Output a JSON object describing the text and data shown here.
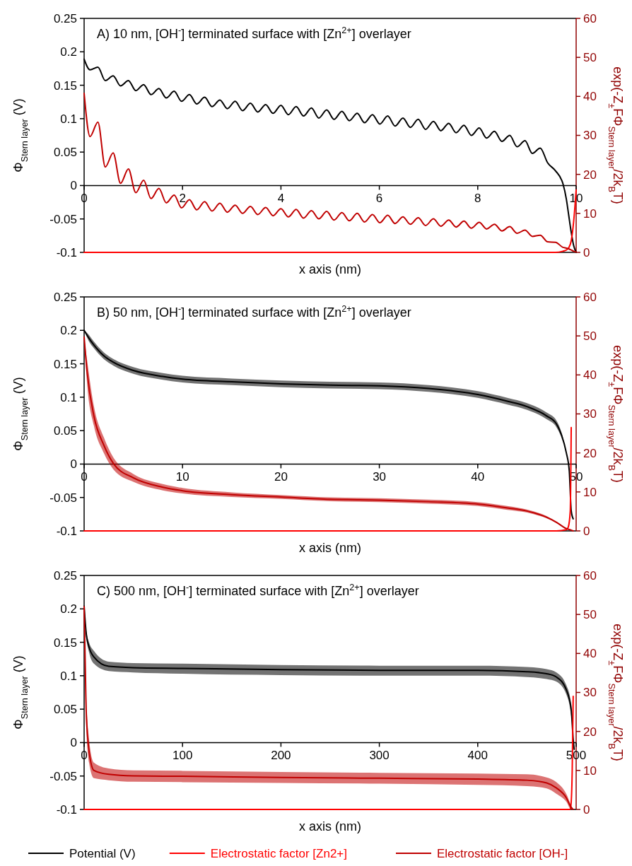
{
  "chart_data": [
    {
      "type": "line",
      "title": "A) 10 nm, [OH$^{-}$] terminated surface with [Zn$^{2+}$] overlayer",
      "xlabel": "x axis (nm)",
      "ylabel": "Φ$_{Stern layer}$ (V)",
      "y2label": "exp(-Z$_{±}$FΦ$_{Stern layer}$/2k$_{B}$T)",
      "xlim": [
        0,
        10
      ],
      "xticks": [
        0,
        2,
        4,
        6,
        8,
        10
      ],
      "ylim": [
        -0.1,
        0.25
      ],
      "yticks": [
        -0.1,
        -0.05,
        0,
        0.05,
        0.1,
        0.15,
        0.2,
        0.25
      ],
      "y2lim": [
        0,
        60
      ],
      "y2ticks": [
        0,
        10,
        20,
        30,
        40,
        50,
        60
      ],
      "legend": "bottom",
      "x": [
        0,
        0.12,
        0.28,
        0.43,
        0.59,
        0.74,
        0.9,
        1.05,
        1.21,
        1.36,
        1.52,
        1.67,
        1.83,
        1.98,
        2.14,
        2.29,
        2.45,
        2.6,
        2.76,
        2.91,
        3.07,
        3.22,
        3.38,
        3.53,
        3.69,
        3.84,
        4.0,
        4.15,
        4.31,
        4.46,
        4.62,
        4.77,
        4.93,
        5.08,
        5.24,
        5.39,
        5.55,
        5.7,
        5.86,
        6.01,
        6.17,
        6.32,
        6.48,
        6.63,
        6.79,
        6.94,
        7.1,
        7.25,
        7.41,
        7.56,
        7.72,
        7.87,
        8.03,
        8.18,
        8.34,
        8.49,
        8.65,
        8.8,
        8.96,
        9.11,
        9.27,
        9.42,
        9.58,
        9.73,
        9.8,
        9.85,
        9.9,
        9.95,
        10
      ],
      "series": [
        {
          "name": "Potential (V)",
          "color": "#000000",
          "values": [
            0.189,
            0.173,
            0.177,
            0.157,
            0.164,
            0.149,
            0.157,
            0.142,
            0.151,
            0.136,
            0.145,
            0.131,
            0.141,
            0.126,
            0.136,
            0.122,
            0.132,
            0.118,
            0.128,
            0.115,
            0.126,
            0.112,
            0.123,
            0.11,
            0.121,
            0.108,
            0.12,
            0.106,
            0.118,
            0.104,
            0.116,
            0.101,
            0.113,
            0.099,
            0.111,
            0.097,
            0.108,
            0.094,
            0.106,
            0.092,
            0.104,
            0.089,
            0.101,
            0.087,
            0.099,
            0.084,
            0.096,
            0.082,
            0.093,
            0.079,
            0.09,
            0.075,
            0.086,
            0.071,
            0.081,
            0.066,
            0.075,
            0.058,
            0.067,
            0.048,
            0.056,
            0.034,
            0.022,
            0.003,
            -0.02,
            -0.045,
            -0.07,
            -0.09,
            -0.1
          ]
        },
        {
          "name": "Electrostatic factor [Zn2+]",
          "color": "#ff0000",
          "axis": "y2",
          "x": [
            0,
            9.58,
            9.73,
            9.8,
            9.85,
            9.9,
            9.95,
            10
          ],
          "values": [
            0,
            0,
            0.3,
            0.6,
            1.2,
            3,
            8,
            16
          ]
        },
        {
          "name": "Electrostatic factor [OH-]",
          "color": "#c00000",
          "axis": "y2",
          "values": [
            40.8,
            29.7,
            33.4,
            21.9,
            25.5,
            17.7,
            21.4,
            15.3,
            18.5,
            13.8,
            16.4,
            12.7,
            14.7,
            11.4,
            13.5,
            10.9,
            13.0,
            10.6,
            12.6,
            10.3,
            12.1,
            10.0,
            11.8,
            9.7,
            11.5,
            9.4,
            11.2,
            9.1,
            11.0,
            8.8,
            10.7,
            8.6,
            10.5,
            8.3,
            10.2,
            8.1,
            10.0,
            7.8,
            9.7,
            7.6,
            9.5,
            7.4,
            9.1,
            7.2,
            8.9,
            6.9,
            8.6,
            6.7,
            8.3,
            6.5,
            8.0,
            6.2,
            7.7,
            6.0,
            7.2,
            5.5,
            6.6,
            4.9,
            5.7,
            4.1,
            4.4,
            2.7,
            2.6,
            1.3,
            1.1,
            0.9,
            0.6,
            0.3,
            0.1
          ]
        }
      ]
    },
    {
      "type": "line",
      "title": "B) 50 nm, [OH$^{-}$] terminated surface with [Zn$^{2+}$] overlayer",
      "xlabel": "x axis (nm)",
      "ylabel": "Φ$_{Stern layer}$ (V)",
      "y2label": "exp(-Z$_{±}$FΦ$_{Stern layer}$/2k$_{B}$T)",
      "xlim": [
        0,
        50
      ],
      "xticks": [
        0,
        10,
        20,
        30,
        40,
        50
      ],
      "ylim": [
        -0.1,
        0.25
      ],
      "yticks": [
        -0.1,
        -0.05,
        0,
        0.05,
        0.1,
        0.15,
        0.2,
        0.25
      ],
      "y2lim": [
        0,
        60
      ],
      "y2ticks": [
        0,
        10,
        20,
        30,
        40,
        50,
        60
      ],
      "series": [
        {
          "color": "#000000",
          "x": [
            0,
            0.5,
            1,
            2,
            3,
            5,
            8,
            10,
            15,
            20,
            25,
            30,
            35,
            40,
            43,
            45,
            47,
            48,
            48.5,
            49,
            49.3,
            49.5,
            49.7
          ],
          "values": [
            0.2,
            0.188,
            0.178,
            0.162,
            0.152,
            0.14,
            0.131,
            0.127,
            0.123,
            0.12,
            0.118,
            0.117,
            0.113,
            0.104,
            0.094,
            0.086,
            0.072,
            0.06,
            0.044,
            0.017,
            -0.01,
            -0.07,
            -0.082
          ],
          "lower": [
            0.2,
            0.183,
            0.173,
            0.157,
            0.147,
            0.135,
            0.126,
            0.122,
            0.118,
            0.115,
            0.113,
            0.112,
            0.108,
            0.099,
            0.089,
            0.081,
            0.067,
            0.055,
            0.04,
            0.017,
            -0.01,
            -0.07,
            -0.082
          ],
          "upper": [
            0.2,
            0.193,
            0.183,
            0.167,
            0.157,
            0.145,
            0.136,
            0.132,
            0.128,
            0.125,
            0.123,
            0.122,
            0.118,
            0.109,
            0.099,
            0.091,
            0.077,
            0.065,
            0.048,
            0.017,
            -0.01,
            -0.07,
            -0.082
          ]
        },
        {
          "color": "#ff0000",
          "axis": "y2",
          "x": [
            0,
            48,
            49,
            49.2,
            49.4,
            49.5
          ],
          "values": [
            0,
            0,
            0.3,
            1,
            5,
            26.5
          ]
        },
        {
          "color": "#c00000",
          "axis": "y2",
          "x": [
            0,
            0.3,
            1,
            2,
            3,
            5,
            8,
            10,
            15,
            20,
            25,
            30,
            35,
            40,
            43,
            45,
            47,
            48,
            49,
            49.5,
            49.7
          ],
          "values": [
            49.7,
            40.8,
            29.4,
            22,
            17.2,
            13.6,
            11.2,
            10.3,
            9.3,
            8.7,
            8.1,
            7.9,
            7.5,
            6.9,
            5.9,
            5.1,
            3.5,
            2.2,
            0.6,
            0.2,
            0
          ],
          "lower": [
            49.7,
            37.8,
            26.9,
            20,
            15.7,
            12.6,
            10.4,
            9.6,
            8.7,
            8.2,
            7.6,
            7.4,
            7,
            6.4,
            5.4,
            4.7,
            3.2,
            2,
            0.5,
            0.2,
            0
          ],
          "upper": [
            49.7,
            43.8,
            31.9,
            24,
            18.7,
            14.6,
            12,
            11,
            9.9,
            9.2,
            8.6,
            8.4,
            8,
            7.4,
            6.4,
            5.5,
            3.8,
            2.4,
            0.7,
            0.2,
            0
          ]
        }
      ]
    },
    {
      "type": "line",
      "title": "C) 500 nm, [OH$^{-}$] terminated surface with [Zn$^{2+}$] overlayer",
      "xlabel": "x axis (nm)",
      "ylabel": "Φ$_{Stern layer}$ (V)",
      "y2label": "exp(-Z$_{±}$FΦ$_{Stern layer}$/2k$_{B}$T)",
      "xlim": [
        0,
        500
      ],
      "xticks": [
        0,
        100,
        200,
        300,
        400,
        500
      ],
      "ylim": [
        -0.1,
        0.25
      ],
      "yticks": [
        -0.1,
        -0.05,
        0,
        0.05,
        0.1,
        0.15,
        0.2,
        0.25
      ],
      "y2lim": [
        0,
        60
      ],
      "y2ticks": [
        0,
        10,
        20,
        30,
        40,
        50,
        60
      ],
      "series": [
        {
          "color": "#000000",
          "x": [
            0,
            2,
            5,
            10,
            25,
            50,
            100,
            200,
            300,
            400,
            450,
            470,
            480,
            490,
            495,
            497,
            498
          ],
          "values": [
            0.204,
            0.165,
            0.143,
            0.128,
            0.114,
            0.112,
            0.111,
            0.109,
            0.108,
            0.108,
            0.106,
            0.103,
            0.098,
            0.079,
            0.049,
            0.005,
            -0.01
          ],
          "lower": [
            0.204,
            0.16,
            0.135,
            0.118,
            0.107,
            0.105,
            0.103,
            0.101,
            0.1,
            0.1,
            0.098,
            0.095,
            0.091,
            0.072,
            0.039,
            0,
            -0.01
          ],
          "upper": [
            0.204,
            0.17,
            0.15,
            0.137,
            0.121,
            0.119,
            0.118,
            0.116,
            0.115,
            0.115,
            0.113,
            0.11,
            0.105,
            0.086,
            0.058,
            0.01,
            -0.01
          ]
        },
        {
          "color": "#ff0000",
          "axis": "y2",
          "x": [
            0,
            494,
            495,
            496,
            497
          ],
          "values": [
            0,
            0,
            2,
            10,
            29
          ]
        },
        {
          "color": "#c00000",
          "axis": "y2",
          "x": [
            0,
            2,
            5,
            10,
            25,
            50,
            100,
            200,
            300,
            400,
            450,
            470,
            480,
            490,
            495,
            497
          ],
          "values": [
            52,
            26,
            15,
            10,
            9,
            8.6,
            8.5,
            8.2,
            8,
            7.8,
            7.5,
            6.8,
            5.5,
            3,
            0.5,
            0
          ],
          "lower": [
            52,
            22,
            12,
            8,
            7.5,
            7.1,
            7,
            6.8,
            6.6,
            6.3,
            6,
            5.4,
            4,
            2,
            0,
            0
          ],
          "upper": [
            52,
            30,
            18,
            12,
            10.5,
            10,
            9.9,
            9.6,
            9.4,
            9.2,
            9,
            8.2,
            7,
            4,
            1,
            0
          ]
        }
      ]
    }
  ]
}
